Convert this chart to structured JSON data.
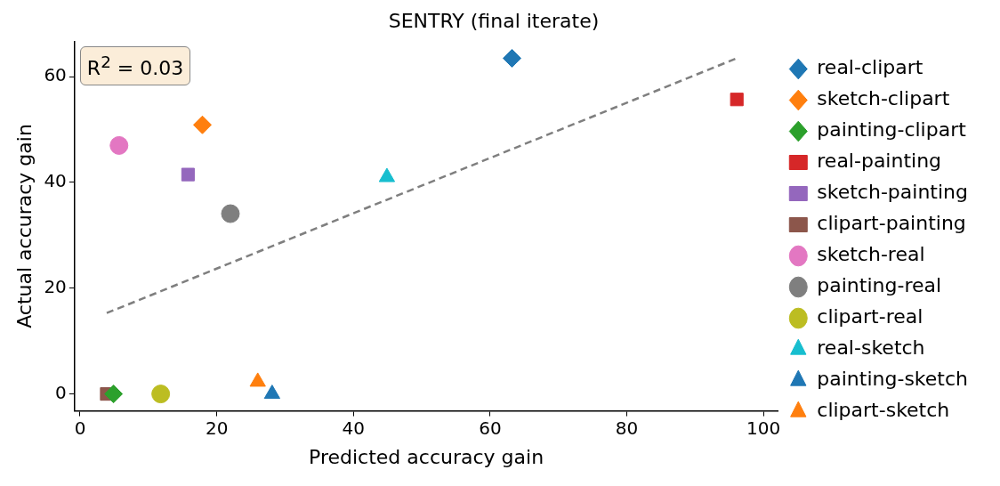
{
  "chart_data": {
    "type": "scatter",
    "title": "SENTRY (final iterate)",
    "xlabel": "Predicted accuracy gain",
    "ylabel": "Actual accuracy gain",
    "xlim": [
      -0.8,
      102.1
    ],
    "ylim": [
      -3.2,
      66.7
    ],
    "xticks": [
      0,
      20,
      40,
      60,
      80,
      100
    ],
    "yticks": [
      0,
      20,
      40,
      60
    ],
    "grid": false,
    "legend": "right",
    "annotations": [
      "R$^{2}$ = 0.03"
    ],
    "series": [
      {
        "name": "real-clipart",
        "color": "#1f77b4",
        "marker": "diamond",
        "x": [
          63.2
        ],
        "values": [
          63.5
        ]
      },
      {
        "name": "sketch-clipart",
        "color": "#ff7f0e",
        "marker": "diamond",
        "x": [
          17.9
        ],
        "values": [
          50.9
        ]
      },
      {
        "name": "painting-clipart",
        "color": "#2ca02c",
        "marker": "diamond",
        "x": [
          4.9
        ],
        "values": [
          0
        ]
      },
      {
        "name": "real-painting",
        "color": "#d62728",
        "marker": "square",
        "x": [
          96.1
        ],
        "values": [
          55.7
        ]
      },
      {
        "name": "sketch-painting",
        "color": "#9467bd",
        "marker": "square",
        "x": [
          15.8
        ],
        "values": [
          41.5
        ]
      },
      {
        "name": "clipart-painting",
        "color": "#8c564b",
        "marker": "square",
        "x": [
          3.9
        ],
        "values": [
          0
        ]
      },
      {
        "name": "sketch-real",
        "color": "#e377c2",
        "marker": "circle",
        "x": [
          5.7
        ],
        "values": [
          47.0
        ]
      },
      {
        "name": "painting-real",
        "color": "#7f7f7f",
        "marker": "circle",
        "x": [
          22.0
        ],
        "values": [
          34.1
        ]
      },
      {
        "name": "clipart-real",
        "color": "#bcbd22",
        "marker": "circle",
        "x": [
          11.8
        ],
        "values": [
          0
        ]
      },
      {
        "name": "real-sketch",
        "color": "#17becf",
        "marker": "triangle",
        "x": [
          44.9
        ],
        "values": [
          41.0
        ]
      },
      {
        "name": "painting-sketch",
        "color": "#1f77b4",
        "marker": "triangle",
        "x": [
          28.1
        ],
        "values": [
          0
        ]
      },
      {
        "name": "clipart-sketch",
        "color": "#ff7f0e",
        "marker": "triangle",
        "x": [
          26.0
        ],
        "values": [
          2.3
        ]
      },
      {
        "type": "line",
        "color": "#7f7f7f",
        "marker": "none",
        "line_style": "dashed",
        "x": [
          3.9,
          96.1
        ],
        "values": [
          15.3,
          63.5
        ]
      }
    ]
  }
}
